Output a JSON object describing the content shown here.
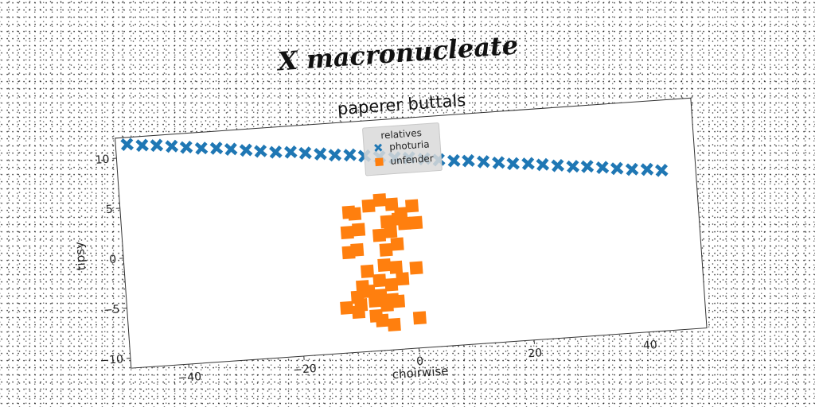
{
  "figure": {
    "suptitle": "X macronucleate"
  },
  "chart_data": {
    "type": "scatter",
    "title": "paperer buttals",
    "xlabel": "choirwise",
    "ylabel": "tipsy",
    "xlim": [
      -50,
      50
    ],
    "ylim": [
      -11,
      12
    ],
    "xticks": [
      -40,
      -20,
      0,
      20,
      40
    ],
    "yticks": [
      -10,
      -5,
      0,
      5,
      10
    ],
    "grid": false,
    "legend": {
      "title": "relatives",
      "position": "upper center"
    },
    "series": [
      {
        "name": "photuria",
        "marker": "X",
        "color": "#1f77b4",
        "x": [
          -48.0,
          -45.4,
          -42.9,
          -40.3,
          -37.8,
          -35.2,
          -32.6,
          -30.1,
          -27.5,
          -25.0,
          -22.4,
          -19.8,
          -17.3,
          -14.7,
          -12.2,
          -9.6,
          -7.1,
          -4.5,
          -1.9,
          0.6,
          3.2,
          5.7,
          8.3,
          10.8,
          13.4,
          16.0,
          18.5,
          21.1,
          23.6,
          26.2,
          28.8,
          31.3,
          33.9,
          36.4,
          39.0,
          41.6,
          44.1
        ],
        "y": [
          11.3,
          11.1,
          11.0,
          10.8,
          10.6,
          10.4,
          10.3,
          10.1,
          9.9,
          9.7,
          9.5,
          9.4,
          9.2,
          9.0,
          8.8,
          8.7,
          8.5,
          8.3,
          8.1,
          8.0,
          7.8,
          7.6,
          7.4,
          7.3,
          7.1,
          6.9,
          6.7,
          6.6,
          6.4,
          6.2,
          6.0,
          5.9,
          5.7,
          5.5,
          5.3,
          5.2,
          5.0
        ]
      },
      {
        "name": "unfender",
        "marker": "s",
        "color": "#ff7f0e",
        "x": [
          -10.5,
          -9.5,
          -7.0,
          -5.0,
          -3.0,
          -1.5,
          0.5,
          -2.0,
          -4.0,
          -1.0,
          -11.0,
          -9.0,
          1.0,
          -5.5,
          -3.5,
          -11.0,
          -9.5,
          -4.5,
          -2.5,
          -8.0,
          -5.0,
          -3.0,
          0.5,
          -9.0,
          -6.0,
          -4.0,
          -2.0,
          -10.0,
          -8.0,
          -6.0,
          -4.0,
          -12.0,
          -9.5,
          -7.0,
          -5.0,
          -3.0,
          -6.0,
          -4.0,
          0.5,
          -10.0,
          -7.0
        ],
        "y": [
          3.0,
          2.8,
          3.5,
          4.0,
          3.5,
          2.5,
          3.2,
          2.0,
          1.8,
          1.5,
          1.0,
          1.2,
          1.5,
          0.5,
          0.8,
          -1.0,
          -0.8,
          -1.0,
          -0.5,
          -3.0,
          -2.5,
          -2.8,
          -3.0,
          -4.5,
          -4.0,
          -4.5,
          -4.0,
          -5.5,
          -5.0,
          -5.5,
          -6.0,
          -6.5,
          -6.3,
          -6.0,
          -6.5,
          -6.2,
          -8.0,
          -8.5,
          -8.0,
          -7.0,
          -7.5
        ]
      }
    ]
  }
}
